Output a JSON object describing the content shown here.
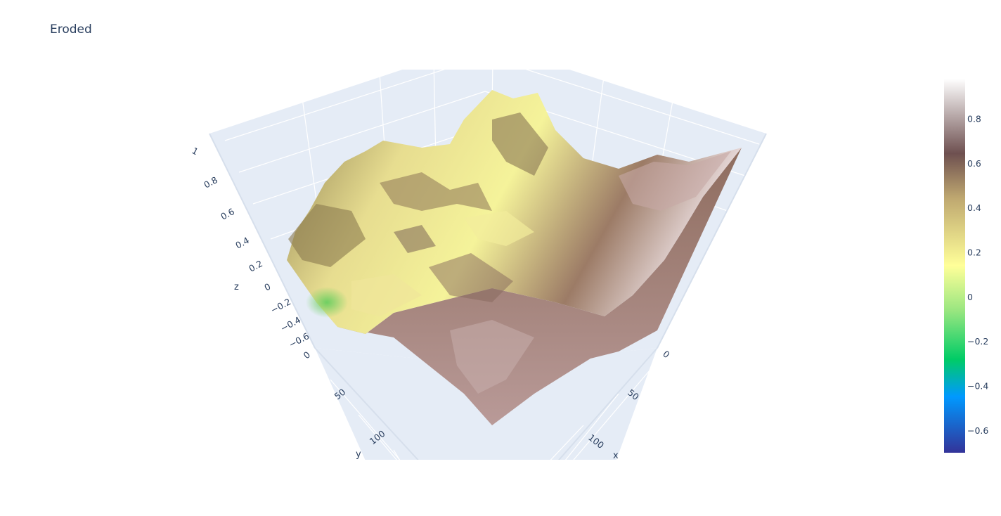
{
  "chart_data": {
    "type": "surface",
    "title": "Eroded",
    "scene": {
      "xaxis": {
        "title": "x",
        "ticks": [
          "0",
          "50",
          "100"
        ]
      },
      "yaxis": {
        "title": "y",
        "ticks": [
          "0",
          "50",
          "100"
        ]
      },
      "zaxis": {
        "title": "z",
        "ticks": [
          "1",
          "0.8",
          "0.6",
          "0.4",
          "0.2",
          "0",
          "−0.2",
          "−0.4",
          "−0.6"
        ]
      },
      "background": "#e5ecf6",
      "grid": true
    },
    "colorscale": "terrain",
    "colorbar": {
      "range": [
        -0.7,
        0.98
      ],
      "ticks": [
        "0.8",
        "0.6",
        "0.4",
        "0.2",
        "0",
        "−0.2",
        "−0.4",
        "−0.6"
      ],
      "colors": [
        "#333399",
        "#0099ff",
        "#00cc66",
        "#99e680",
        "#ffff99",
        "#998866",
        "#6e5050",
        "#ffffff"
      ]
    }
  }
}
